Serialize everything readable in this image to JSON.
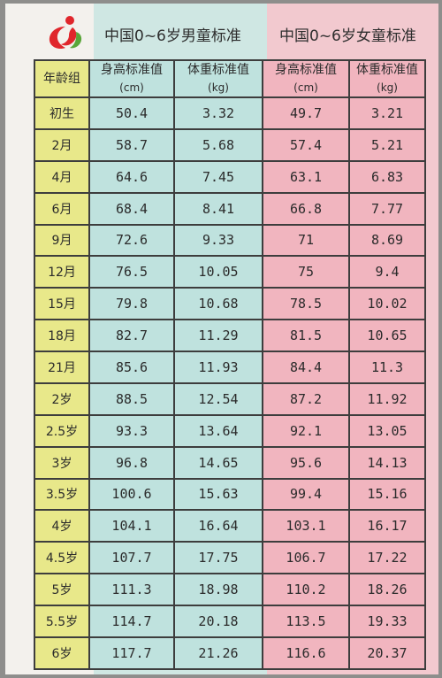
{
  "header": {
    "boys_title": "中国0~6岁男童标准",
    "girls_title": "中国0~6岁女童标准"
  },
  "columns": {
    "age": "年龄组",
    "boys_height": "身高标准值",
    "boys_height_unit": "(cm)",
    "boys_weight": "体重标准值",
    "boys_weight_unit": "(kg)",
    "girls_height": "身高标准值",
    "girls_height_unit": "(cm)",
    "girls_weight": "体重标准值",
    "girls_weight_unit": "(kg)"
  },
  "rows": [
    {
      "age": "初生",
      "boy_h": "50.4",
      "boy_w": "3.32",
      "girl_h": "49.7",
      "girl_w": "3.21"
    },
    {
      "age": "2月",
      "boy_h": "58.7",
      "boy_w": "5.68",
      "girl_h": "57.4",
      "girl_w": "5.21"
    },
    {
      "age": "4月",
      "boy_h": "64.6",
      "boy_w": "7.45",
      "girl_h": "63.1",
      "girl_w": "6.83"
    },
    {
      "age": "6月",
      "boy_h": "68.4",
      "boy_w": "8.41",
      "girl_h": "66.8",
      "girl_w": "7.77"
    },
    {
      "age": "9月",
      "boy_h": "72.6",
      "boy_w": "9.33",
      "girl_h": "71",
      "girl_w": "8.69"
    },
    {
      "age": "12月",
      "boy_h": "76.5",
      "boy_w": "10.05",
      "girl_h": "75",
      "girl_w": "9.4"
    },
    {
      "age": "15月",
      "boy_h": "79.8",
      "boy_w": "10.68",
      "girl_h": "78.5",
      "girl_w": "10.02"
    },
    {
      "age": "18月",
      "boy_h": "82.7",
      "boy_w": "11.29",
      "girl_h": "81.5",
      "girl_w": "10.65"
    },
    {
      "age": "21月",
      "boy_h": "85.6",
      "boy_w": "11.93",
      "girl_h": "84.4",
      "girl_w": "11.3"
    },
    {
      "age": "2岁",
      "boy_h": "88.5",
      "boy_w": "12.54",
      "girl_h": "87.2",
      "girl_w": "11.92"
    },
    {
      "age": "2.5岁",
      "boy_h": "93.3",
      "boy_w": "13.64",
      "girl_h": "92.1",
      "girl_w": "13.05"
    },
    {
      "age": "3岁",
      "boy_h": "96.8",
      "boy_w": "14.65",
      "girl_h": "95.6",
      "girl_w": "14.13"
    },
    {
      "age": "3.5岁",
      "boy_h": "100.6",
      "boy_w": "15.63",
      "girl_h": "99.4",
      "girl_w": "15.16"
    },
    {
      "age": "4岁",
      "boy_h": "104.1",
      "boy_w": "16.64",
      "girl_h": "103.1",
      "girl_w": "16.17"
    },
    {
      "age": "4.5岁",
      "boy_h": "107.7",
      "boy_w": "17.75",
      "girl_h": "106.7",
      "girl_w": "17.22"
    },
    {
      "age": "5岁",
      "boy_h": "111.3",
      "boy_w": "18.98",
      "girl_h": "110.2",
      "girl_w": "18.26"
    },
    {
      "age": "5.5岁",
      "boy_h": "114.7",
      "boy_w": "20.18",
      "girl_h": "113.5",
      "girl_w": "19.33"
    },
    {
      "age": "6岁",
      "boy_h": "117.7",
      "boy_w": "21.26",
      "girl_h": "116.6",
      "girl_w": "20.37"
    }
  ],
  "colors": {
    "boys_band": "#cfe7e3",
    "girls_band": "#f2c9cf",
    "age_column": "#e8e88a",
    "logo_red": "#e0262c",
    "logo_green": "#5aa63a"
  },
  "icons": {
    "logo": "child-figure-logo-icon"
  }
}
